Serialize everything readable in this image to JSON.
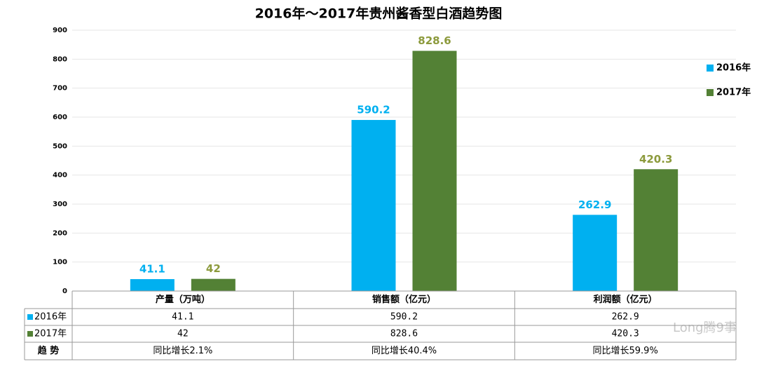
{
  "chart_data": {
    "type": "bar",
    "title": "2016年～2017年贵州酱香型白酒趋势图",
    "categories": [
      "产量（万吨）",
      "销售额（亿元）",
      "利润额（亿元）"
    ],
    "series": [
      {
        "name": "2016年",
        "color": "#00b0f0",
        "label_color": "#00b0f0",
        "values": [
          41.1,
          590.2,
          262.9
        ]
      },
      {
        "name": "2017年",
        "color": "#538135",
        "label_color": "#8c9a3c",
        "values": [
          42,
          828.6,
          420.3
        ]
      }
    ],
    "ylim": [
      0,
      900
    ],
    "yticks": [
      0,
      100,
      200,
      300,
      400,
      500,
      600,
      700,
      800,
      900
    ],
    "grid": true,
    "legend": "right",
    "trend_label": "趋 势",
    "trend_texts": [
      "同比增长2.1%",
      "同比增长40.4%",
      "同比增长59.9%"
    ],
    "watermark": "Long腾9事"
  }
}
